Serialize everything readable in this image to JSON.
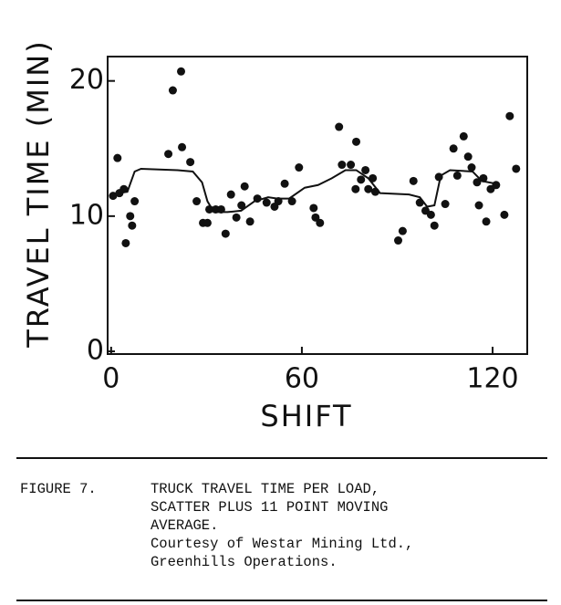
{
  "chart_data": {
    "type": "scatter",
    "y_label": "TRAVEL TIME (MIN)",
    "x_label": "SHIFT",
    "xlim": [
      -1.1,
      130.9
    ],
    "ylim": [
      -0.2,
      21.8
    ],
    "xticks": [
      0,
      60,
      120
    ],
    "yticks": [
      0,
      10,
      20
    ],
    "color": "#111111",
    "points": {
      "x": [
        0.6,
        2,
        2.6,
        4,
        4.6,
        6,
        6.6,
        7.4,
        18,
        19.4,
        22,
        22.3,
        24.9,
        26.9,
        28.9,
        30.3,
        30.9,
        32.9,
        34.6,
        36,
        37.7,
        39.4,
        41,
        42,
        43.7,
        46,
        48.9,
        51.4,
        52.6,
        54.6,
        56.9,
        59.1,
        63.7,
        64.3,
        65.7,
        71.7,
        72.6,
        75.4,
        77.1,
        76.9,
        78.6,
        80,
        80.9,
        82.3,
        83.1,
        90.3,
        91.7,
        95.1,
        97.1,
        98.9,
        100.6,
        101.7,
        103.1,
        105.1,
        107.7,
        108.9,
        110.9,
        112.3,
        113.4,
        115.1,
        115.7,
        117.1,
        118,
        119.4,
        121.1,
        123.7,
        125.4,
        127.4
      ],
      "y": [
        11.5,
        14.3,
        11.7,
        12,
        8,
        10,
        9.3,
        11.1,
        14.6,
        19.3,
        20.7,
        15.1,
        14,
        11.1,
        9.5,
        9.5,
        10.5,
        10.5,
        10.5,
        8.7,
        11.6,
        9.9,
        10.8,
        12.2,
        9.6,
        11.3,
        11,
        10.7,
        11.1,
        12.4,
        11.1,
        13.6,
        10.6,
        9.9,
        9.5,
        16.6,
        13.8,
        13.8,
        15.5,
        12,
        12.7,
        13.4,
        12,
        12.8,
        11.8,
        8.2,
        8.9,
        12.6,
        11,
        10.4,
        10.1,
        9.3,
        12.9,
        10.9,
        15,
        13,
        15.9,
        14.4,
        13.6,
        12.5,
        10.8,
        12.8,
        9.6,
        12,
        12.3,
        10.1,
        17.4,
        13.5
      ]
    },
    "moving_average": {
      "x": [
        0,
        1.7,
        5.1,
        7.4,
        9.4,
        20.9,
        25.7,
        28.6,
        30.3,
        32.3,
        36.6,
        40.9,
        45.1,
        49.4,
        52.3,
        56,
        60.9,
        65.1,
        69.4,
        73.7,
        77.1,
        80.9,
        84.6,
        93.7,
        97.1,
        99.4,
        101.7,
        103.7,
        106.6,
        113.7,
        116.6,
        120.9
      ],
      "y": [
        11.5,
        11.7,
        11.8,
        13.3,
        13.5,
        13.4,
        13.3,
        12.5,
        11.1,
        10.3,
        10.3,
        10.4,
        11.1,
        11.4,
        11.3,
        11.3,
        12.1,
        12.3,
        12.8,
        13.4,
        13.4,
        12.8,
        11.7,
        11.6,
        11.4,
        10.7,
        10.8,
        13,
        13.4,
        13.3,
        12.6,
        12.4
      ]
    }
  },
  "caption": {
    "label": "FIGURE 7.",
    "lines": [
      "TRUCK TRAVEL TIME PER LOAD,",
      "SCATTER PLUS 11 POINT MOVING",
      "AVERAGE.",
      "Courtesy of Westar Mining Ltd.,",
      "Greenhills Operations."
    ]
  }
}
